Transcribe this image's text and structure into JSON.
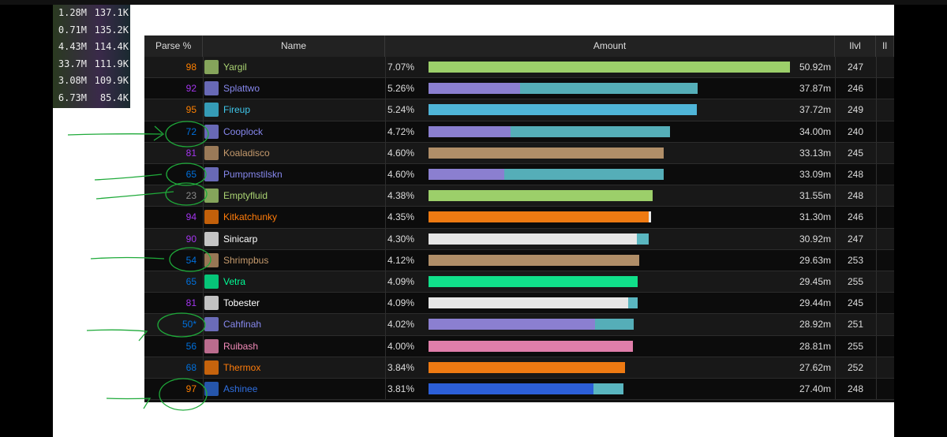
{
  "overlay": {
    "rows": [
      [
        "1.28M",
        "137.1K"
      ],
      [
        "0.71M",
        "135.2K"
      ],
      [
        "4.43M",
        "114.4K"
      ],
      [
        "33.7M",
        "111.9K"
      ],
      [
        "3.08M",
        "109.9K"
      ],
      [
        "6.73M",
        "85.4K"
      ]
    ]
  },
  "table": {
    "headers": [
      "Parse %",
      "Name",
      "Amount",
      "Ilvl",
      "Il"
    ],
    "rows": [
      {
        "parse": 98,
        "parse_color": "#ff8000",
        "name": "Yargil",
        "name_color": "#aad372",
        "share": "7.07%",
        "amount": "50.92m",
        "ilvl": 247,
        "segments": [
          {
            "color": "#9ccf6a",
            "value": 7.07
          }
        ]
      },
      {
        "parse": 92,
        "parse_color": "#a335ee",
        "name": "Splattwo",
        "name_color": "#8788ee",
        "share": "5.26%",
        "amount": "37.87m",
        "ilvl": 246,
        "segments": [
          {
            "color": "#8b7fd0",
            "value": 1.79
          },
          {
            "color": "#55aeb8",
            "value": 3.47
          }
        ]
      },
      {
        "parse": 95,
        "parse_color": "#ff8000",
        "name": "Fireup",
        "name_color": "#3fc7eb",
        "share": "5.24%",
        "amount": "37.72m",
        "ilvl": 249,
        "segments": [
          {
            "color": "#4fb5d8",
            "value": 5.24
          }
        ]
      },
      {
        "parse": 72,
        "parse_color": "#0070dd",
        "name": "Cooplock",
        "name_color": "#8788ee",
        "share": "4.72%",
        "amount": "34.00m",
        "ilvl": 240,
        "segments": [
          {
            "color": "#8b7fd0",
            "value": 1.6
          },
          {
            "color": "#55aeb8",
            "value": 3.12
          }
        ]
      },
      {
        "parse": 81,
        "parse_color": "#a335ee",
        "name": "Koaladisco",
        "name_color": "#c69b6d",
        "share": "4.60%",
        "amount": "33.13m",
        "ilvl": 245,
        "segments": [
          {
            "color": "#b08e68",
            "value": 4.6
          }
        ]
      },
      {
        "parse": 65,
        "parse_color": "#0070dd",
        "name": "Pumpmstilskn",
        "name_color": "#8788ee",
        "share": "4.60%",
        "amount": "33.09m",
        "ilvl": 248,
        "segments": [
          {
            "color": "#8b7fd0",
            "value": 1.48
          },
          {
            "color": "#55aeb8",
            "value": 3.12
          }
        ]
      },
      {
        "parse": 23,
        "parse_color": "#8a8a8a",
        "name": "Emptyfluid",
        "name_color": "#aad372",
        "share": "4.38%",
        "amount": "31.55m",
        "ilvl": 248,
        "segments": [
          {
            "color": "#9ccf6a",
            "value": 4.38
          }
        ]
      },
      {
        "parse": 94,
        "parse_color": "#a335ee",
        "name": "Kitkatchunky",
        "name_color": "#ff7c0a",
        "share": "4.35%",
        "amount": "31.30m",
        "ilvl": 246,
        "segments": [
          {
            "color": "#ee7a12",
            "value": 4.3
          },
          {
            "color": "#e8e8e8",
            "value": 0.05
          }
        ]
      },
      {
        "parse": 90,
        "parse_color": "#a335ee",
        "name": "Sinicarp",
        "name_color": "#ffffff",
        "share": "4.30%",
        "amount": "30.92m",
        "ilvl": 247,
        "segments": [
          {
            "color": "#e6e6e6",
            "value": 4.07
          },
          {
            "color": "#5ab6c0",
            "value": 0.23
          }
        ]
      },
      {
        "parse": 54,
        "parse_color": "#0070dd",
        "name": "Shrimpbus",
        "name_color": "#c69b6d",
        "share": "4.12%",
        "amount": "29.63m",
        "ilvl": 253,
        "segments": [
          {
            "color": "#b08e68",
            "value": 4.12
          }
        ]
      },
      {
        "parse": 65,
        "parse_color": "#0070dd",
        "name": "Vetra",
        "name_color": "#00ff98",
        "share": "4.09%",
        "amount": "29.45m",
        "ilvl": 255,
        "segments": [
          {
            "color": "#10e08a",
            "value": 4.09
          }
        ]
      },
      {
        "parse": 81,
        "parse_color": "#a335ee",
        "name": "Tobester",
        "name_color": "#ffffff",
        "share": "4.09%",
        "amount": "29.44m",
        "ilvl": 245,
        "segments": [
          {
            "color": "#e6e6e6",
            "value": 3.9
          },
          {
            "color": "#5ab6c0",
            "value": 0.19
          }
        ]
      },
      {
        "parse": "50*",
        "parse_color": "#0070dd",
        "name": "Cahfinah",
        "name_color": "#8788ee",
        "share": "4.02%",
        "amount": "28.92m",
        "ilvl": 251,
        "segments": [
          {
            "color": "#8b7fd0",
            "value": 3.26
          },
          {
            "color": "#55aeb8",
            "value": 0.76
          }
        ]
      },
      {
        "parse": 56,
        "parse_color": "#0070dd",
        "name": "Ruibash",
        "name_color": "#f48cba",
        "share": "4.00%",
        "amount": "28.81m",
        "ilvl": 255,
        "segments": [
          {
            "color": "#e07eaa",
            "value": 4.0
          }
        ]
      },
      {
        "parse": 68,
        "parse_color": "#0070dd",
        "name": "Thermox",
        "name_color": "#ff7c0a",
        "share": "3.84%",
        "amount": "27.62m",
        "ilvl": 252,
        "segments": [
          {
            "color": "#ee7a12",
            "value": 3.84
          }
        ]
      },
      {
        "parse": 97,
        "parse_color": "#ff8000",
        "name": "Ashinee",
        "name_color": "#2f6fe0",
        "share": "3.81%",
        "amount": "27.40m",
        "ilvl": 248,
        "segments": [
          {
            "color": "#2c5fd8",
            "value": 3.23
          },
          {
            "color": "#5ab6c0",
            "value": 0.58
          }
        ]
      }
    ]
  }
}
